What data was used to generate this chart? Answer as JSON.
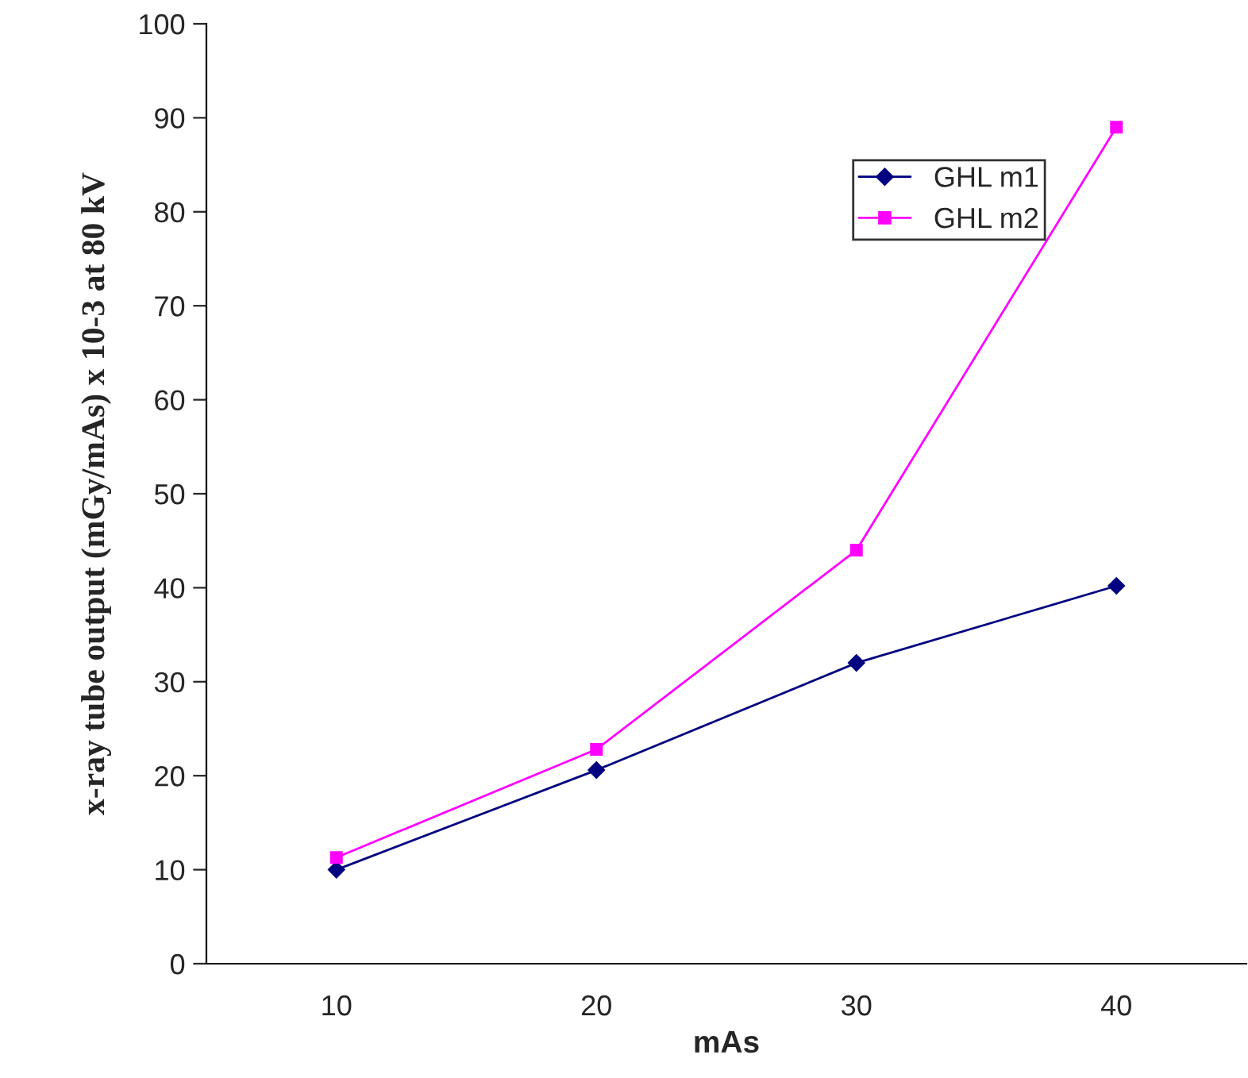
{
  "chart_data": {
    "type": "line",
    "xlabel": "mAs",
    "ylabel": "x-ray tube output (mGy/mAs) x 10-3 at 80 kV",
    "categories": [
      "10",
      "20",
      "30",
      "40"
    ],
    "series": [
      {
        "name": "GHL m1",
        "color": "#000080",
        "values": [
          10,
          20.6,
          32,
          40.2
        ],
        "marker": "diamond"
      },
      {
        "name": "GHL m2",
        "color": "#ff00ff",
        "values": [
          11.3,
          22.8,
          44,
          89
        ]
      }
    ],
    "marker": "square",
    "ylim": [
      0,
      100
    ],
    "yticks": [
      0,
      10,
      20,
      30,
      40,
      50,
      60,
      70,
      80,
      90,
      100
    ],
    "grid": false,
    "legend": "top right"
  }
}
